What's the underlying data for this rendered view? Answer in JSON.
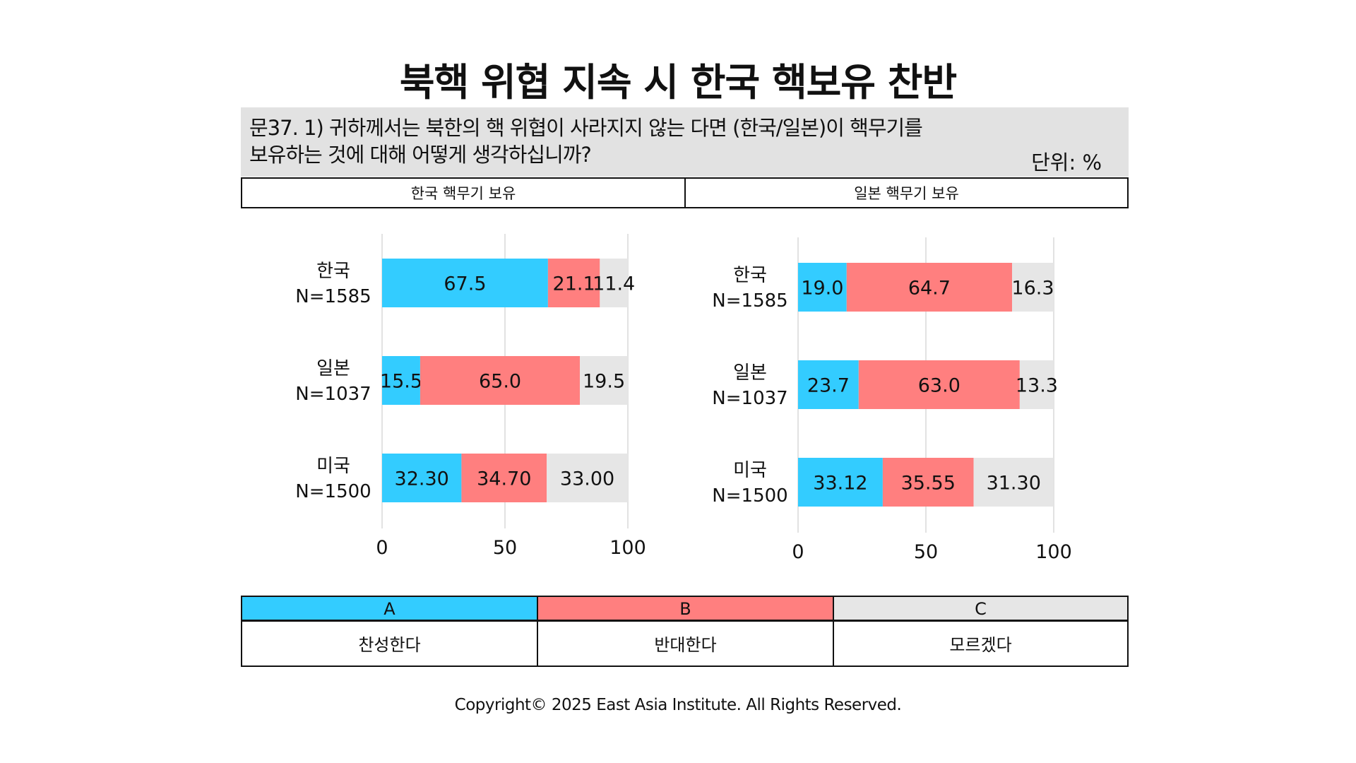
{
  "title": "북핵 위협 지속 시 한국 핵보유 찬반",
  "question": {
    "line1": "문37. 1) 귀하께서는 북한의 핵 위협이 사라지지 않는 다면 (한국/일본)이 핵무기를",
    "line2": "보유하는 것에 대해 어떻게 생각하십니까?",
    "unit": "단위: %"
  },
  "panel_headers": [
    "한국 핵무기 보유",
    "일본 핵무기 보유"
  ],
  "legend": [
    {
      "key": "A",
      "label": "찬성한다",
      "color": "#33ccff"
    },
    {
      "key": "B",
      "label": "반대한다",
      "color": "#ff7f7f"
    },
    {
      "key": "C",
      "label": "모르겠다",
      "color": "#e6e6e6"
    }
  ],
  "copyright": "Copyright© 2025 East Asia Institute. All Rights Reserved.",
  "chart_data": [
    {
      "type": "bar",
      "orientation": "horizontal",
      "stacked": true,
      "title": "한국 핵무기 보유",
      "categories": [
        {
          "name": "한국",
          "n": "N=1585"
        },
        {
          "name": "일본",
          "n": "N=1037"
        },
        {
          "name": "미국",
          "n": "N=1500"
        }
      ],
      "series": [
        {
          "name": "A",
          "values": [
            67.5,
            15.5,
            32.3
          ],
          "labels": [
            "67.5",
            "15.5",
            "32.30"
          ]
        },
        {
          "name": "B",
          "values": [
            21.1,
            65.0,
            34.7
          ],
          "labels": [
            "21.1",
            "65.0",
            "34.70"
          ]
        },
        {
          "name": "C",
          "values": [
            11.4,
            19.5,
            33.0
          ],
          "labels": [
            "11.4",
            "19.5",
            "33.00"
          ]
        }
      ],
      "xlim": [
        0,
        100
      ],
      "xticks": [
        0,
        50,
        100
      ],
      "grid": true
    },
    {
      "type": "bar",
      "orientation": "horizontal",
      "stacked": true,
      "title": "일본 핵무기 보유",
      "categories": [
        {
          "name": "한국",
          "n": "N=1585"
        },
        {
          "name": "일본",
          "n": "N=1037"
        },
        {
          "name": "미국",
          "n": "N=1500"
        }
      ],
      "series": [
        {
          "name": "A",
          "values": [
            19.0,
            23.7,
            33.12
          ],
          "labels": [
            "19.0",
            "23.7",
            "33.12"
          ]
        },
        {
          "name": "B",
          "values": [
            64.7,
            63.0,
            35.55
          ],
          "labels": [
            "64.7",
            "63.0",
            "35.55"
          ]
        },
        {
          "name": "C",
          "values": [
            16.3,
            13.3,
            31.3
          ],
          "labels": [
            "16.3",
            "13.3",
            "31.30"
          ]
        }
      ],
      "xlim": [
        0,
        100
      ],
      "xticks": [
        0,
        50,
        100
      ],
      "grid": true
    }
  ]
}
